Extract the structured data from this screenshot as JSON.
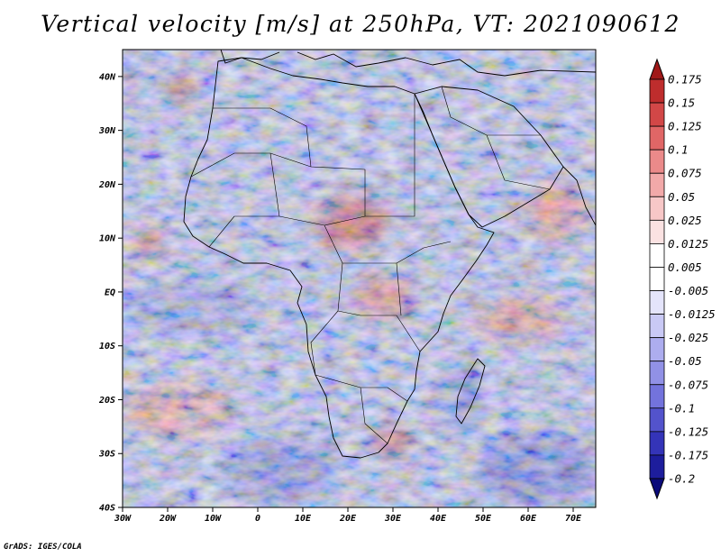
{
  "title": "Vertical velocity [m/s] at 250hPa, VT: 2021090612",
  "footer": "GrADS: IGES/COLA",
  "map": {
    "lon_range": [
      -30,
      75
    ],
    "lat_range": [
      -40,
      45
    ],
    "lon_ticks": [
      {
        "value": -30,
        "label": "30W"
      },
      {
        "value": -20,
        "label": "20W"
      },
      {
        "value": -10,
        "label": "10W"
      },
      {
        "value": 0,
        "label": "0"
      },
      {
        "value": 10,
        "label": "10E"
      },
      {
        "value": 20,
        "label": "20E"
      },
      {
        "value": 30,
        "label": "30E"
      },
      {
        "value": 40,
        "label": "40E"
      },
      {
        "value": 50,
        "label": "50E"
      },
      {
        "value": 60,
        "label": "60E"
      },
      {
        "value": 70,
        "label": "70E"
      }
    ],
    "lat_ticks": [
      {
        "value": 40,
        "label": "40N"
      },
      {
        "value": 30,
        "label": "30N"
      },
      {
        "value": 20,
        "label": "20N"
      },
      {
        "value": 10,
        "label": "10N"
      },
      {
        "value": 0,
        "label": "EQ"
      },
      {
        "value": -10,
        "label": "10S"
      },
      {
        "value": -20,
        "label": "20S"
      },
      {
        "value": -30,
        "label": "30S"
      },
      {
        "value": -40,
        "label": "40S"
      }
    ]
  },
  "colorbar": {
    "labels": [
      "0.175",
      "0.15",
      "0.125",
      "0.1",
      "0.075",
      "0.05",
      "0.025",
      "0.0125",
      "0.005",
      "-0.005",
      "-0.0125",
      "-0.025",
      "-0.05",
      "-0.075",
      "-0.1",
      "-0.125",
      "-0.175",
      "-0.2"
    ],
    "colors": [
      "#a01818",
      "#be2d2d",
      "#d24747",
      "#e06666",
      "#eb8a8a",
      "#f2a9a9",
      "#f7c7c7",
      "#fbe2e2",
      "#ffffff",
      "#ffffff",
      "#e4e4fb",
      "#c9c9f5",
      "#adadef",
      "#9191e6",
      "#7373dc",
      "#5353cc",
      "#3434b8",
      "#1d1d9c",
      "#0b0b7a"
    ]
  },
  "features": [
    {
      "name": "sahel-ascent",
      "lon": 21,
      "lat": 13,
      "rx": 8,
      "ry": 5,
      "color": "#d95a5a"
    },
    {
      "name": "west-africa-coast-ascent",
      "lon": -24,
      "lat": 9,
      "rx": 4,
      "ry": 2.5,
      "color": "#e07070"
    },
    {
      "name": "madeira-ascent",
      "lon": -17,
      "lat": 38,
      "rx": 3,
      "ry": 2.5,
      "color": "#c84444"
    },
    {
      "name": "arabian-sea-ascent",
      "lon": 66,
      "lat": 15,
      "rx": 7,
      "ry": 5,
      "color": "#f08a8a"
    },
    {
      "name": "indian-ocean-ascent",
      "lon": 58,
      "lat": -5,
      "rx": 10,
      "ry": 4,
      "color": "#ee9090"
    },
    {
      "name": "south-atlantic-ascent",
      "lon": -18,
      "lat": -22,
      "rx": 12,
      "ry": 5,
      "color": "#f0a0a0"
    },
    {
      "name": "southern-ocean-descent",
      "lon": 62,
      "lat": -33,
      "rx": 13,
      "ry": 7,
      "color": "#7878dd"
    },
    {
      "name": "south-atlantic-descent",
      "lon": 5,
      "lat": -33,
      "rx": 12,
      "ry": 6,
      "color": "#8585e0"
    },
    {
      "name": "atlantic-descent",
      "lon": -15,
      "lat": -3,
      "rx": 14,
      "ry": 5,
      "color": "#9a9ae6"
    },
    {
      "name": "congo-ascent",
      "lon": 28,
      "lat": -1,
      "rx": 7,
      "ry": 4,
      "color": "#e58080"
    },
    {
      "name": "southern-africa-ascent",
      "lon": 30,
      "lat": -28,
      "rx": 4,
      "ry": 3,
      "color": "#d66060"
    },
    {
      "name": "mozambique-channel-descent",
      "lon": 45,
      "lat": -20,
      "rx": 5,
      "ry": 6,
      "color": "#8a8ae0"
    }
  ]
}
